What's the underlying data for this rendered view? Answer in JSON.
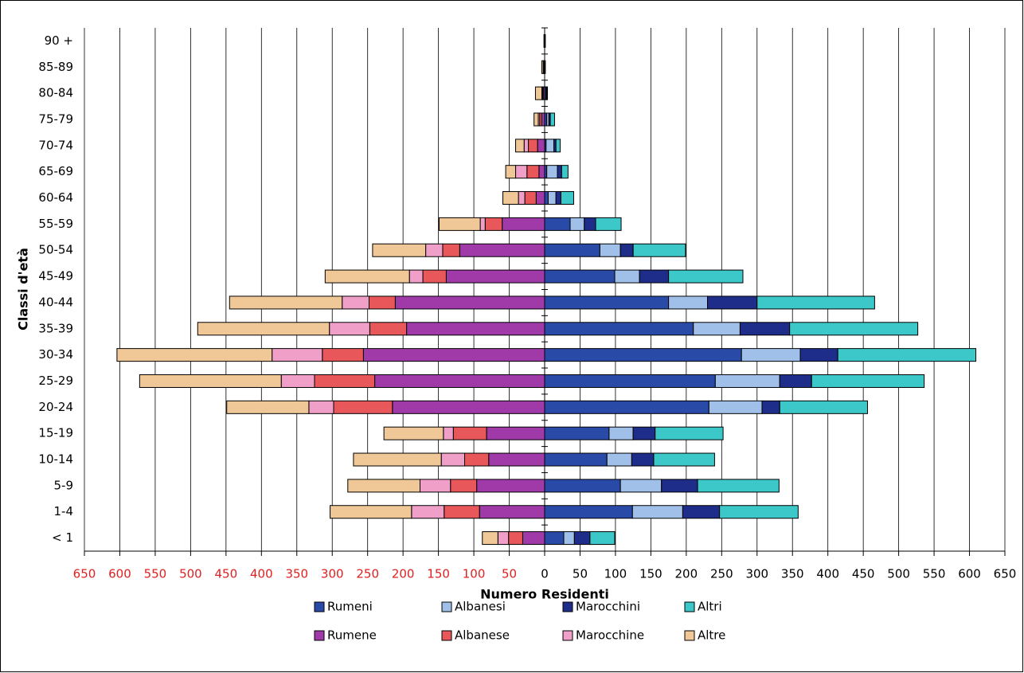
{
  "chart_data": {
    "type": "bar",
    "orientation": "horizontal",
    "stacked": true,
    "ylabel": "Classi d'età",
    "xlabel": "Numero Residenti",
    "categories": [
      "< 1",
      "1-4",
      "5-9",
      "10-14",
      "15-19",
      "20-24",
      "25-29",
      "30-34",
      "35-39",
      "40-44",
      "45-49",
      "50-54",
      "55-59",
      "60-64",
      "65-69",
      "70-74",
      "75-79",
      "80-84",
      "85-89",
      "90 +"
    ],
    "series": [
      {
        "name": "Rumeni",
        "color": "#2a4aa8",
        "values": [
          27,
          124,
          107,
          88,
          91,
          232,
          241,
          278,
          210,
          175,
          99,
          78,
          36,
          5,
          3,
          2,
          3,
          2,
          0,
          1
        ]
      },
      {
        "name": "Albanesi",
        "color": "#a0c0ea",
        "values": [
          15,
          71,
          58,
          35,
          34,
          75,
          91,
          83,
          66,
          55,
          35,
          29,
          20,
          11,
          15,
          11,
          3,
          1,
          0,
          0
        ]
      },
      {
        "name": "Marocchini",
        "color": "#1f2d8a",
        "values": [
          22,
          52,
          51,
          31,
          31,
          25,
          45,
          53,
          70,
          70,
          41,
          18,
          16,
          7,
          6,
          3,
          2,
          1,
          1,
          0
        ]
      },
      {
        "name": "Altri",
        "color": "#3cc8c8",
        "values": [
          35,
          111,
          115,
          86,
          96,
          124,
          159,
          195,
          181,
          166,
          105,
          74,
          36,
          18,
          9,
          6,
          6,
          0,
          0,
          0
        ]
      },
      {
        "name": "Rumene",
        "color": "#a03aa8",
        "values": [
          -31,
          -92,
          -96,
          -79,
          -82,
          -215,
          -240,
          -256,
          -195,
          -211,
          -139,
          -120,
          -60,
          -12,
          -8,
          -10,
          -4,
          -2,
          -1,
          -1
        ]
      },
      {
        "name": "Albanese",
        "color": "#e8585a",
        "values": [
          -20,
          -50,
          -37,
          -34,
          -47,
          -83,
          -85,
          -58,
          -52,
          -37,
          -33,
          -24,
          -24,
          -16,
          -17,
          -13,
          -3,
          -1,
          -1,
          0
        ]
      },
      {
        "name": "Marocchine",
        "color": "#f0a0c8",
        "values": [
          -15,
          -46,
          -43,
          -33,
          -14,
          -35,
          -47,
          -71,
          -57,
          -38,
          -19,
          -24,
          -7,
          -9,
          -16,
          -6,
          -2,
          -1,
          0,
          0
        ]
      },
      {
        "name": "Altre",
        "color": "#f0c898",
        "values": [
          -22,
          -115,
          -102,
          -124,
          -84,
          -116,
          -200,
          -219,
          -186,
          -159,
          -119,
          -75,
          -58,
          -22,
          -14,
          -12,
          -6,
          -9,
          -2,
          0
        ]
      }
    ],
    "xlim": [
      -650,
      650
    ],
    "xticks": [
      {
        "value": -650,
        "label": "650"
      },
      {
        "value": -600,
        "label": "600"
      },
      {
        "value": -550,
        "label": "550"
      },
      {
        "value": -500,
        "label": "500"
      },
      {
        "value": -450,
        "label": "450"
      },
      {
        "value": -400,
        "label": "400"
      },
      {
        "value": -350,
        "label": "350"
      },
      {
        "value": -300,
        "label": "300"
      },
      {
        "value": -250,
        "label": "250"
      },
      {
        "value": -200,
        "label": "200"
      },
      {
        "value": -150,
        "label": "150"
      },
      {
        "value": -100,
        "label": "100"
      },
      {
        "value": -50,
        "label": "50"
      },
      0,
      50,
      100,
      150,
      200,
      250,
      300,
      350,
      400,
      450,
      500,
      550,
      600,
      650
    ],
    "xtick_negative_color": "#e02020",
    "grid": true
  }
}
